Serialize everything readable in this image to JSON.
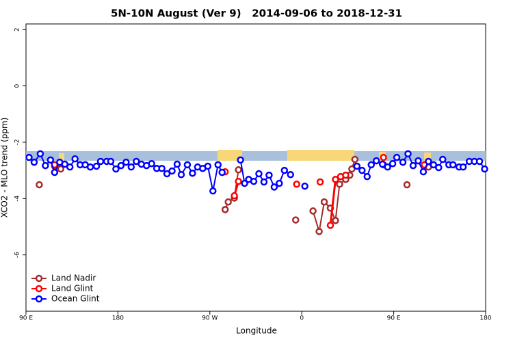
{
  "chart_data": {
    "type": "line",
    "title": "5N-10N August (Ver 9)   2014-09-06 to 2018-12-31",
    "x_label": "Longitude",
    "y_label": "XCO2 - MLO trend (ppm)",
    "xlim": [
      90,
      540
    ],
    "xticks": [
      {
        "value": 90,
        "label": "90 E"
      },
      180,
      {
        "value": 270,
        "label": "90 W"
      },
      {
        "value": 360,
        "label": "0"
      },
      {
        "value": 450,
        "label": "90 E"
      },
      {
        "value": 540,
        "label": "180"
      }
    ],
    "ylim": [
      -8,
      2.2
    ],
    "yticks": [
      2,
      0,
      -2,
      -4,
      -6
    ],
    "legend": "bottom-left",
    "series": [
      {
        "name": "Land Nadir",
        "color": "#a52a2a",
        "x": [
          103,
          null,
          118,
          124,
          null,
          285,
          288,
          294,
          298,
          null,
          354,
          null,
          371,
          377,
          382,
          388,
          393,
          397,
          403,
          407,
          409,
          412,
          null,
          440,
          null,
          463,
          null,
          484
        ],
        "values": [
          -3.51,
          null,
          -2.85,
          -2.95,
          null,
          -4.39,
          -4.12,
          -3.98,
          -2.98,
          null,
          -4.76,
          null,
          -4.44,
          -5.17,
          -4.12,
          -4.34,
          -4.78,
          -3.49,
          -3.32,
          -3.17,
          -2.95,
          -2.61,
          null,
          -2.8,
          null,
          -3.51,
          null,
          -2.88
        ]
      },
      {
        "name": "Land Glint",
        "color": "#ff0000",
        "x": [
          118,
          null,
          285,
          null,
          294,
          298,
          null,
          355,
          null,
          378,
          null,
          388,
          393,
          398,
          403,
          null,
          440,
          null,
          480
        ],
        "values": [
          -2.8,
          null,
          -3.05,
          null,
          -3.9,
          -3.39,
          null,
          -3.49,
          null,
          -3.41,
          null,
          -4.95,
          -3.32,
          -3.22,
          -3.17,
          null,
          -2.54,
          null,
          -2.8
        ]
      },
      {
        "name": "Ocean Glint",
        "color": "#0000ff",
        "x": [
          93,
          98,
          104,
          109,
          114,
          118,
          123,
          128,
          133,
          138,
          143,
          148,
          153,
          159,
          163,
          169,
          173,
          178,
          183,
          188,
          193,
          198,
          203,
          208,
          213,
          218,
          223,
          228,
          233,
          238,
          242,
          248,
          253,
          258,
          263,
          268,
          273,
          278,
          282,
          null,
          300,
          304,
          308,
          313,
          318,
          323,
          328,
          333,
          338,
          343,
          349,
          null,
          363,
          null,
          414,
          419,
          424,
          428,
          433,
          439,
          444,
          449,
          453,
          459,
          464,
          469,
          474,
          479,
          484,
          489,
          494,
          498,
          504,
          508,
          514,
          518,
          524,
          529,
          534,
          539
        ],
        "values": [
          -2.54,
          -2.71,
          -2.41,
          -2.83,
          -2.63,
          -3.07,
          -2.71,
          -2.78,
          -2.88,
          -2.59,
          -2.8,
          -2.8,
          -2.88,
          -2.85,
          -2.68,
          -2.68,
          -2.68,
          -2.95,
          -2.83,
          -2.71,
          -2.88,
          -2.68,
          -2.78,
          -2.83,
          -2.76,
          -2.93,
          -2.93,
          -3.12,
          -3.02,
          -2.78,
          -3.15,
          -2.8,
          -3.1,
          -2.88,
          -2.93,
          -2.85,
          -3.73,
          -2.8,
          -3.07,
          null,
          -2.63,
          -3.46,
          -3.32,
          -3.39,
          -3.12,
          -3.41,
          -3.17,
          -3.59,
          -3.46,
          -3.0,
          -3.15,
          null,
          -3.56,
          null,
          -2.85,
          -3.0,
          -3.22,
          -2.8,
          -2.66,
          -2.78,
          -2.88,
          -2.76,
          -2.54,
          -2.71,
          -2.41,
          -2.83,
          -2.66,
          -3.05,
          -2.68,
          -2.8,
          -2.9,
          -2.61,
          -2.8,
          -2.8,
          -2.88,
          -2.88,
          -2.68,
          -2.68,
          -2.68,
          -2.95
        ]
      }
    ]
  }
}
